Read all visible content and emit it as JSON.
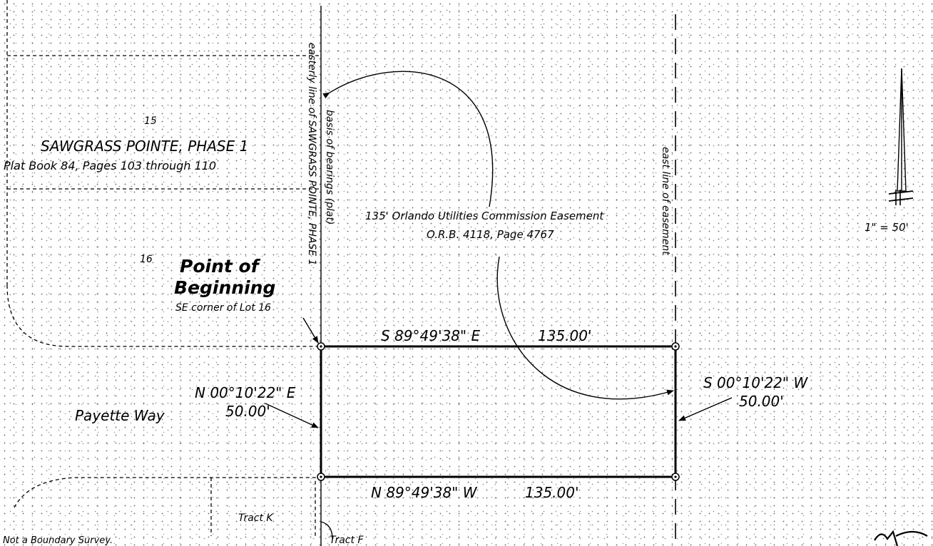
{
  "plat": {
    "lot_15": "15",
    "lot_16": "16",
    "subdivision_name": "SAWGRASS POINTE, PHASE 1",
    "plat_reference": "Plat Book 84, Pages 103 through 110"
  },
  "vertical_labels": {
    "easterly_line": "easterly line of SAWGRASS POINTE, PHASE 1",
    "basis_of_bearings": "basis of bearings (plat)",
    "east_line_easement": "east line of easement"
  },
  "easement": {
    "name": "135' Orlando Utilities Commission Easement",
    "reference": "O.R.B. 4118, Page 4767"
  },
  "point_of_beginning": {
    "line1": "Point of",
    "line2": "Beginning",
    "note": "SE corner of Lot 16"
  },
  "courses": {
    "north_bearing": "S 89°49'38\" E",
    "north_distance": "135.00'",
    "south_bearing": "N 89°49'38\" W",
    "south_distance": "135.00'",
    "west_bearing": "N 00°10'22\" E",
    "west_distance": "50.00'",
    "east_bearing": "S 00°10'22\" W",
    "east_distance": "50.00'"
  },
  "streets": {
    "payette_way": "Payette Way",
    "tract_k": "Tract K",
    "tract_f": "Tract F"
  },
  "scale": {
    "text": "1\" = 50'"
  },
  "notes": {
    "disclaimer": "Not a Boundary Survey."
  },
  "colors": {
    "ink": "#000000",
    "paper": "#ffffff"
  }
}
